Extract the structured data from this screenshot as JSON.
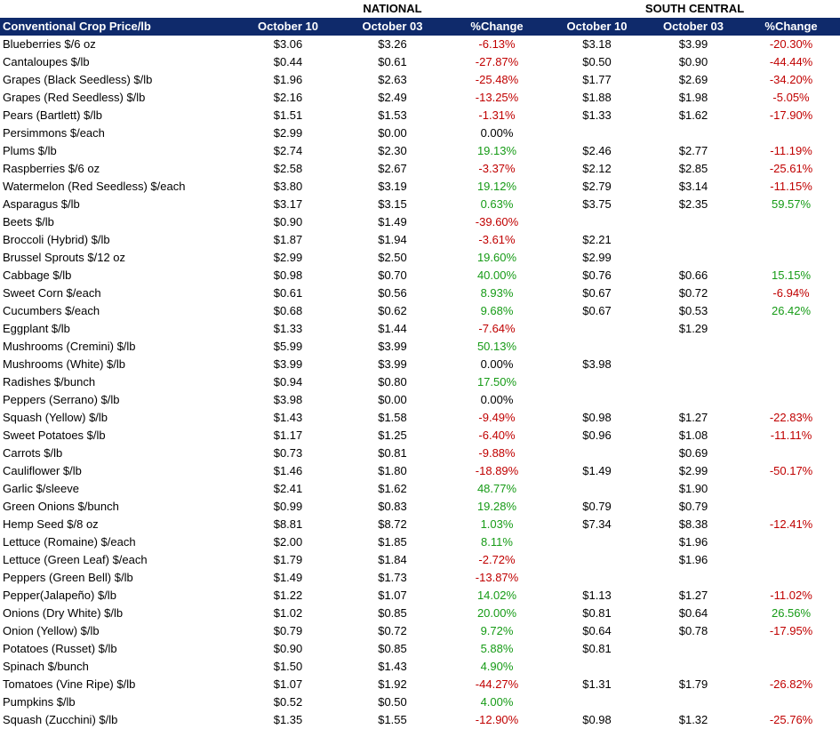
{
  "table": {
    "groups": [
      "NATIONAL",
      "SOUTH CENTRAL"
    ],
    "header": [
      "Conventional Crop Price/lb",
      "October 10",
      "October 03",
      "%Change",
      "October 10",
      "October 03",
      "%Change"
    ],
    "rows": [
      [
        "Blueberries $/6 oz",
        "$3.06",
        "$3.26",
        "-6.13%",
        "$3.18",
        "$3.99",
        "-20.30%"
      ],
      [
        "Cantaloupes $/lb",
        "$0.44",
        "$0.61",
        "-27.87%",
        "$0.50",
        "$0.90",
        "-44.44%"
      ],
      [
        "Grapes (Black Seedless) $/lb",
        "$1.96",
        "$2.63",
        "-25.48%",
        "$1.77",
        "$2.69",
        "-34.20%"
      ],
      [
        "Grapes (Red Seedless) $/lb",
        "$2.16",
        "$2.49",
        "-13.25%",
        "$1.88",
        "$1.98",
        "-5.05%"
      ],
      [
        "Pears (Bartlett) $/lb",
        "$1.51",
        "$1.53",
        "-1.31%",
        "$1.33",
        "$1.62",
        "-17.90%"
      ],
      [
        "Persimmons $/each",
        "$2.99",
        "$0.00",
        "0.00%",
        null,
        null,
        null
      ],
      [
        "Plums $/lb",
        "$2.74",
        "$2.30",
        "19.13%",
        "$2.46",
        "$2.77",
        "-11.19%"
      ],
      [
        "Raspberries $/6 oz",
        "$2.58",
        "$2.67",
        "-3.37%",
        "$2.12",
        "$2.85",
        "-25.61%"
      ],
      [
        "Watermelon (Red Seedless) $/each",
        "$3.80",
        "$3.19",
        "19.12%",
        "$2.79",
        "$3.14",
        "-11.15%"
      ],
      [
        "Asparagus $/lb",
        "$3.17",
        "$3.15",
        "0.63%",
        "$3.75",
        "$2.35",
        "59.57%"
      ],
      [
        "Beets $/lb",
        "$0.90",
        "$1.49",
        "-39.60%",
        null,
        null,
        null
      ],
      [
        "Broccoli (Hybrid) $/lb",
        "$1.87",
        "$1.94",
        "-3.61%",
        "$2.21",
        null,
        null
      ],
      [
        "Brussel Sprouts $/12 oz",
        "$2.99",
        "$2.50",
        "19.60%",
        "$2.99",
        null,
        null
      ],
      [
        "Cabbage $/lb",
        "$0.98",
        "$0.70",
        "40.00%",
        "$0.76",
        "$0.66",
        "15.15%"
      ],
      [
        "Sweet Corn $/each",
        "$0.61",
        "$0.56",
        "8.93%",
        "$0.67",
        "$0.72",
        "-6.94%"
      ],
      [
        "Cucumbers $/each",
        "$0.68",
        "$0.62",
        "9.68%",
        "$0.67",
        "$0.53",
        "26.42%"
      ],
      [
        "Eggplant $/lb",
        "$1.33",
        "$1.44",
        "-7.64%",
        null,
        "$1.29",
        null
      ],
      [
        "Mushrooms (Cremini) $/lb",
        "$5.99",
        "$3.99",
        "50.13%",
        null,
        null,
        null
      ],
      [
        "Mushrooms (White) $/lb",
        "$3.99",
        "$3.99",
        "0.00%",
        "$3.98",
        null,
        null
      ],
      [
        "Radishes $/bunch",
        "$0.94",
        "$0.80",
        "17.50%",
        null,
        null,
        null
      ],
      [
        "Peppers (Serrano) $/lb",
        "$3.98",
        "$0.00",
        "0.00%",
        null,
        null,
        null
      ],
      [
        "Squash (Yellow) $/lb",
        "$1.43",
        "$1.58",
        "-9.49%",
        "$0.98",
        "$1.27",
        "-22.83%"
      ],
      [
        "Sweet Potatoes $/lb",
        "$1.17",
        "$1.25",
        "-6.40%",
        "$0.96",
        "$1.08",
        "-11.11%"
      ],
      [
        "Carrots $/lb",
        "$0.73",
        "$0.81",
        "-9.88%",
        null,
        "$0.69",
        null
      ],
      [
        "Cauliflower $/lb",
        "$1.46",
        "$1.80",
        "-18.89%",
        "$1.49",
        "$2.99",
        "-50.17%"
      ],
      [
        "Garlic $/sleeve",
        "$2.41",
        "$1.62",
        "48.77%",
        null,
        "$1.90",
        null
      ],
      [
        "Green Onions $/bunch",
        "$0.99",
        "$0.83",
        "19.28%",
        "$0.79",
        "$0.79",
        null
      ],
      [
        "Hemp Seed $/8 oz",
        "$8.81",
        "$8.72",
        "1.03%",
        "$7.34",
        "$8.38",
        "-12.41%"
      ],
      [
        "Lettuce (Romaine) $/each",
        "$2.00",
        "$1.85",
        "8.11%",
        null,
        "$1.96",
        null
      ],
      [
        "Lettuce (Green Leaf) $/each",
        "$1.79",
        "$1.84",
        "-2.72%",
        null,
        "$1.96",
        null
      ],
      [
        "Peppers (Green Bell) $/lb",
        "$1.49",
        "$1.73",
        "-13.87%",
        null,
        null,
        null
      ],
      [
        "Pepper(Jalapeño) $/lb",
        "$1.22",
        "$1.07",
        "14.02%",
        "$1.13",
        "$1.27",
        "-11.02%"
      ],
      [
        "Onions (Dry White) $/lb",
        "$1.02",
        "$0.85",
        "20.00%",
        "$0.81",
        "$0.64",
        "26.56%"
      ],
      [
        "Onion (Yellow) $/lb",
        "$0.79",
        "$0.72",
        "9.72%",
        "$0.64",
        "$0.78",
        "-17.95%"
      ],
      [
        "Potatoes (Russet) $/lb",
        "$0.90",
        "$0.85",
        "5.88%",
        "$0.81",
        null,
        null
      ],
      [
        "Spinach $/bunch",
        "$1.50",
        "$1.43",
        "4.90%",
        null,
        null,
        null
      ],
      [
        "Tomatoes (Vine Ripe) $/lb",
        "$1.07",
        "$1.92",
        "-44.27%",
        "$1.31",
        "$1.79",
        "-26.82%"
      ],
      [
        "Pumpkins $/lb",
        "$0.52",
        "$0.50",
        "4.00%",
        null,
        null,
        null
      ],
      [
        "Squash (Zucchini) $/lb",
        "$1.35",
        "$1.55",
        "-12.90%",
        "$0.98",
        "$1.32",
        "-25.76%"
      ]
    ]
  }
}
